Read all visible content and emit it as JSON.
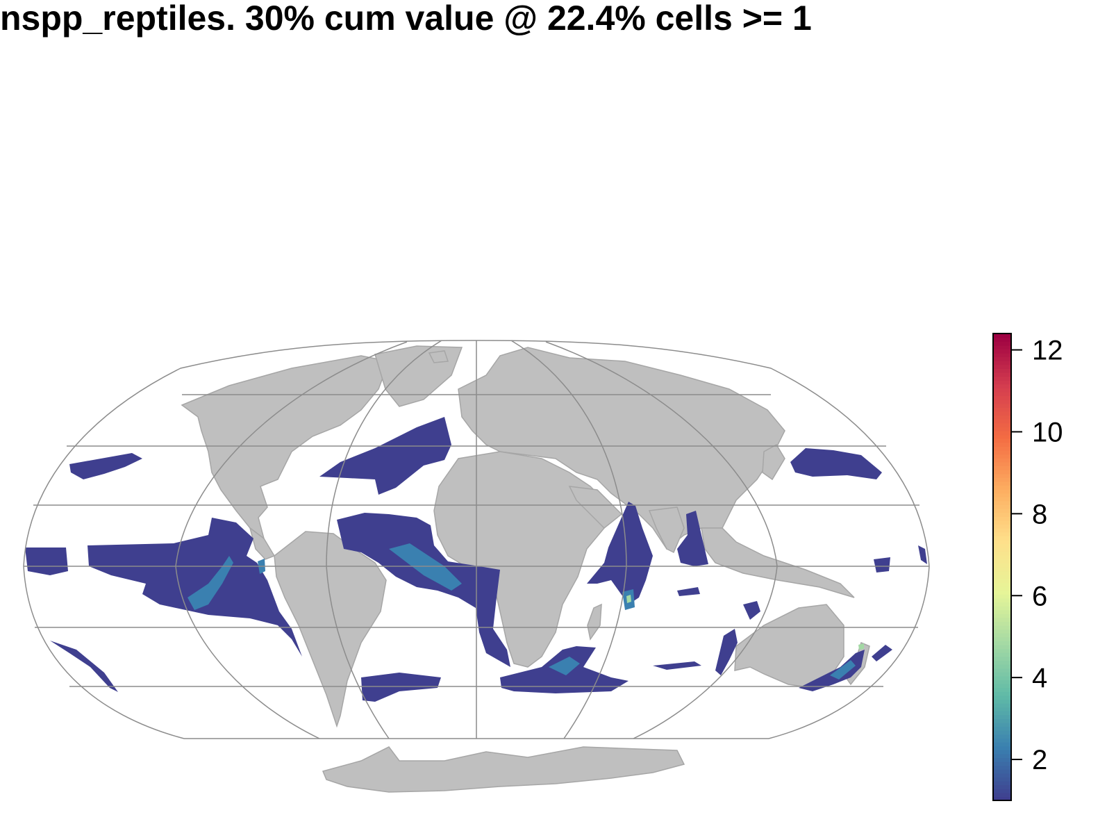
{
  "title": "nspp_reptiles. 30% cum value @ 22.4% cells >= 1",
  "map": {
    "projection": "mollweide",
    "graticule": true,
    "land_color": "#bfbfbf",
    "land_border_color": "#a6a6a6",
    "graticule_color": "#8c8c8c",
    "data_color_low": "#3f3f8f",
    "data_color_mid": "#3a80b0"
  },
  "legend": {
    "type": "color-bar",
    "placement": "right",
    "min": 1,
    "max": 12.4,
    "palette": [
      "#3f3f8f",
      "#3a80b0",
      "#5fbaa7",
      "#a3d9a4",
      "#e6f598",
      "#fee08b",
      "#fdae61",
      "#f46d43",
      "#d53e4f",
      "#9e0142"
    ],
    "tick_labels": [
      "2",
      "4",
      "6",
      "8",
      "10",
      "12"
    ]
  }
}
